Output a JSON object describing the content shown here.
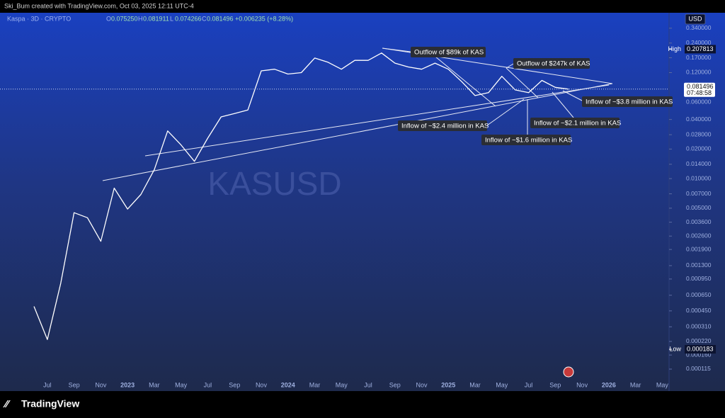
{
  "header": {
    "credit": "Ski_Bum created with TradingView.com, Oct 03, 2025 12:11 UTC-4",
    "symbol": "Kaspa · 3D · CRYPTO",
    "ohlc": [
      {
        "key": "O",
        "label": "0.075250"
      },
      {
        "key": "H",
        "label": "0.081911"
      },
      {
        "key": "L",
        "label": "0.074266"
      },
      {
        "key": "C",
        "label": "0.081496"
      }
    ],
    "change": "+0.006235 (+8.28%)"
  },
  "currency": "USD",
  "watermark": "KASUSD",
  "logo": "TradingView",
  "annotations": [
    "Outflow of $89k of KAS",
    "Outflow of $247k of KAS",
    "Inflow of ~$3.8 million in KAS",
    "Inflow of ~$2.4 million in KAS",
    "Inflow of ~$2.1 million in KAS",
    "Inflow of ~$1.6 million in KAS"
  ],
  "chart_data": {
    "type": "line",
    "log_scale": true,
    "color": "#ffffff",
    "categories": [
      null,
      "Jul",
      null,
      "Sep",
      null,
      "Nov",
      null,
      "2023",
      null,
      "Mar",
      null,
      "May",
      null,
      "Jul",
      null,
      "Sep",
      null,
      "Nov",
      null,
      "2024",
      null,
      "Mar",
      null,
      "May",
      null,
      "Jul",
      null,
      "Sep",
      null,
      "Nov",
      null,
      "2025",
      null,
      "Mar",
      null,
      "May",
      null,
      "Jul",
      null,
      "Sep",
      null,
      "Nov",
      null,
      "2026",
      null,
      "Mar",
      null,
      "May"
    ],
    "values": [
      0.0005,
      0.00023,
      0.00086,
      0.0045,
      0.004,
      0.0023,
      0.008,
      0.0049,
      0.0069,
      0.0123,
      0.0306,
      0.022,
      0.015,
      0.0258,
      0.0425,
      0.046,
      0.05,
      0.125,
      0.13,
      0.116,
      0.12,
      0.169,
      0.153,
      0.13,
      0.16,
      0.16,
      0.19,
      0.15,
      0.137,
      0.13,
      0.15,
      0.13,
      0.097,
      0.07,
      0.075,
      0.11,
      0.08,
      0.075,
      0.1,
      0.085,
      0.081496,
      null,
      null,
      null,
      null,
      null,
      null,
      null
    ],
    "ylim": [
      9.9e-05,
      0.4
    ],
    "yticks": [
      {
        "value": 0.34,
        "label": "0.340000"
      },
      {
        "value": 0.24,
        "label": "0.240000"
      },
      {
        "value": 0.17,
        "label": "0.170000"
      },
      {
        "value": 0.12,
        "label": "0.120000"
      },
      {
        "value": 0.06,
        "label": "0.060000"
      },
      {
        "value": 0.04,
        "label": "0.040000"
      },
      {
        "value": 0.028,
        "label": "0.028000"
      },
      {
        "value": 0.02,
        "label": "0.020000"
      },
      {
        "value": 0.014,
        "label": "0.014000"
      },
      {
        "value": 0.01,
        "label": "0.010000"
      },
      {
        "value": 0.007,
        "label": "0.007000"
      },
      {
        "value": 0.005,
        "label": "0.005000"
      },
      {
        "value": 0.0036,
        "label": "0.003600"
      },
      {
        "value": 0.0026,
        "label": "0.002600"
      },
      {
        "value": 0.0019,
        "label": "0.001900"
      },
      {
        "value": 0.0013,
        "label": "0.001300"
      },
      {
        "value": 0.00095,
        "label": "0.000950"
      },
      {
        "value": 0.00065,
        "label": "0.000650"
      },
      {
        "value": 0.00045,
        "label": "0.000450"
      },
      {
        "value": 0.00031,
        "label": "0.000310"
      },
      {
        "value": 0.00022,
        "label": "0.000220"
      },
      {
        "value": 0.00016,
        "label": "0.000160"
      },
      {
        "value": 0.000115,
        "label": "0.000115"
      }
    ],
    "high": {
      "name": "High",
      "value": 0.207813,
      "label": "0.207813"
    },
    "low": {
      "name": "Low",
      "value": 0.000183,
      "label": "0.000183"
    },
    "last": {
      "value": 0.081496,
      "label": "0.081496",
      "countdown": "07:48:58"
    }
  }
}
